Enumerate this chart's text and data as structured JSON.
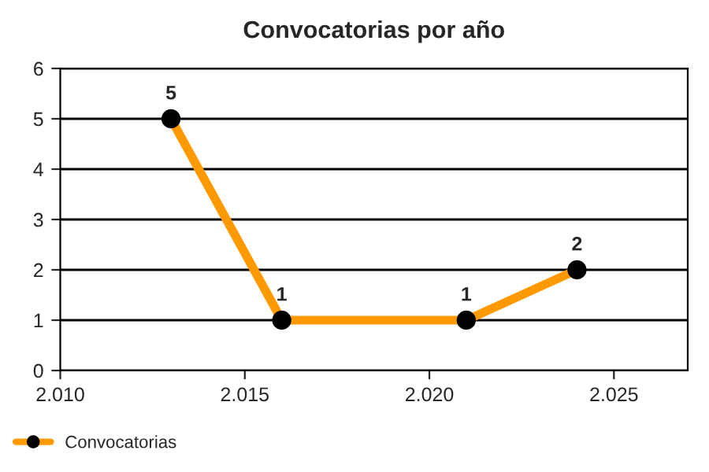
{
  "chart_data": {
    "type": "line",
    "title": "Convocatorias por año",
    "x": [
      2013,
      2016,
      2021,
      2024
    ],
    "series": [
      {
        "name": "Convocatorias",
        "color": "#ff9900",
        "values": [
          5,
          1,
          1,
          2
        ]
      }
    ],
    "xlim": [
      2010,
      2027
    ],
    "xticks": [
      {
        "value": 2010,
        "label": "2.010"
      },
      {
        "value": 2015,
        "label": "2.015"
      },
      {
        "value": 2020,
        "label": "2.020"
      },
      {
        "value": 2025,
        "label": "2.025"
      }
    ],
    "ylim": [
      0,
      6
    ],
    "yticks": [
      0,
      1,
      2,
      3,
      4,
      5,
      6
    ],
    "grid": "y",
    "legend": "bottom left",
    "marker": "circle",
    "line_style": "solid",
    "data_labels": true
  }
}
